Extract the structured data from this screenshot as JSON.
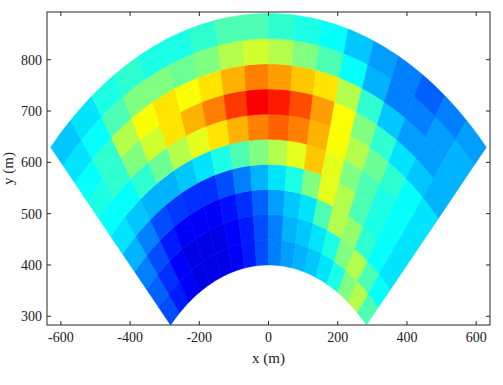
{
  "chart_data": {
    "type": "polar_heatmap",
    "x_label": "x (m)",
    "y_label": "y (m)",
    "xlim": [
      -640,
      640
    ],
    "ylim": [
      283,
      893
    ],
    "xticks": [
      -600,
      -400,
      -200,
      0,
      200,
      400,
      600
    ],
    "yticks": [
      300,
      400,
      500,
      600,
      700,
      800
    ],
    "r_edges": [
      400,
      449,
      498,
      547,
      596,
      645,
      694,
      743,
      792,
      841,
      890
    ],
    "theta_edges": [
      135,
      130,
      125,
      120,
      115,
      110,
      105,
      100,
      95,
      90,
      85,
      80,
      75,
      70,
      65,
      60,
      55,
      50,
      45
    ],
    "clim": [
      0,
      1
    ],
    "cells": [
      [
        0.2,
        0.15,
        0.12,
        0.1,
        0.1,
        0.1,
        0.12,
        0.15,
        0.2,
        0.25,
        0.28,
        0.3,
        0.32,
        0.35,
        0.4,
        0.5,
        0.55,
        0.45
      ],
      [
        0.22,
        0.17,
        0.12,
        0.1,
        0.1,
        0.1,
        0.12,
        0.15,
        0.2,
        0.25,
        0.3,
        0.32,
        0.35,
        0.4,
        0.5,
        0.55,
        0.45,
        0.38
      ],
      [
        0.25,
        0.2,
        0.15,
        0.12,
        0.12,
        0.12,
        0.14,
        0.17,
        0.22,
        0.28,
        0.32,
        0.35,
        0.45,
        0.55,
        0.52,
        0.42,
        0.38,
        0.35
      ],
      [
        0.3,
        0.25,
        0.2,
        0.18,
        0.17,
        0.17,
        0.2,
        0.25,
        0.3,
        0.35,
        0.4,
        0.5,
        0.6,
        0.55,
        0.45,
        0.4,
        0.38,
        0.35
      ],
      [
        0.35,
        0.32,
        0.3,
        0.3,
        0.32,
        0.35,
        0.4,
        0.45,
        0.5,
        0.55,
        0.6,
        0.68,
        0.6,
        0.5,
        0.45,
        0.4,
        0.38,
        0.35
      ],
      [
        0.38,
        0.38,
        0.42,
        0.48,
        0.55,
        0.6,
        0.65,
        0.7,
        0.75,
        0.78,
        0.75,
        0.7,
        0.62,
        0.55,
        0.48,
        0.42,
        0.38,
        0.35
      ],
      [
        0.4,
        0.42,
        0.5,
        0.58,
        0.65,
        0.7,
        0.75,
        0.82,
        0.88,
        0.85,
        0.8,
        0.72,
        0.62,
        0.5,
        0.42,
        0.35,
        0.32,
        0.3
      ],
      [
        0.38,
        0.42,
        0.55,
        0.62,
        0.65,
        0.62,
        0.65,
        0.7,
        0.75,
        0.72,
        0.68,
        0.65,
        0.55,
        0.42,
        0.32,
        0.28,
        0.28,
        0.3
      ],
      [
        0.35,
        0.38,
        0.45,
        0.5,
        0.5,
        0.48,
        0.5,
        0.55,
        0.58,
        0.55,
        0.5,
        0.45,
        0.38,
        0.3,
        0.25,
        0.25,
        0.28,
        0.3
      ],
      [
        0.32,
        0.35,
        0.4,
        0.42,
        0.4,
        0.4,
        0.42,
        0.45,
        0.45,
        0.42,
        0.4,
        0.38,
        0.32,
        0.28,
        0.25,
        0.22,
        0.25,
        0.28
      ]
    ]
  }
}
